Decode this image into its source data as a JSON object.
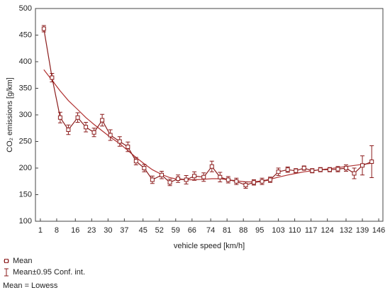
{
  "chart_data": {
    "type": "line",
    "xlabel": "vehicle speed [km/h]",
    "ylabel": "CO₂ emissions [g/km]",
    "xlim": [
      -1.1,
      147.8
    ],
    "xticks": [
      1,
      8,
      16,
      23,
      30,
      37,
      45,
      52,
      59,
      66,
      74,
      81,
      88,
      95,
      103,
      110,
      117,
      124,
      132,
      139,
      146
    ],
    "ylim": [
      100,
      500
    ],
    "yticks": [
      100,
      150,
      200,
      250,
      300,
      350,
      400,
      450,
      500
    ],
    "grid": false,
    "legend": [
      "Mean",
      "Mean±0.95 Conf. int.",
      "Mean = Lowess"
    ],
    "x": [
      2.5,
      6,
      9.5,
      13,
      17,
      20.5,
      24,
      27.5,
      31,
      35,
      38.5,
      42,
      45.5,
      49,
      53,
      56.5,
      60,
      63.5,
      67,
      71,
      74.5,
      78,
      81.5,
      85,
      89,
      92.5,
      96,
      99.5,
      103,
      107,
      110.5,
      114,
      117.5,
      121,
      125,
      128.5,
      132,
      135.5,
      139,
      143
    ],
    "series": [
      {
        "color": "#8b1c1c",
        "values": [
          462,
          370,
          295,
          272,
          295,
          277,
          267,
          290,
          262,
          250,
          240,
          213,
          200,
          178,
          187,
          173,
          180,
          178,
          185,
          183,
          203,
          183,
          178,
          175,
          168,
          173,
          175,
          178,
          193,
          197,
          195,
          200,
          195,
          197,
          197,
          198,
          200,
          190,
          205,
          212
        ],
        "errors": [
          6,
          8,
          10,
          9,
          9,
          9,
          8,
          11,
          10,
          9,
          9,
          7,
          7,
          7,
          7,
          6,
          7,
          8,
          8,
          8,
          10,
          9,
          6,
          6,
          6,
          5,
          6,
          5,
          7,
          5,
          4,
          4,
          4,
          4,
          4,
          5,
          6,
          10,
          18,
          30
        ]
      },
      {
        "color": "#b03030",
        "values": [
          385,
          365,
          345,
          327,
          310,
          295,
          282,
          270,
          258,
          246,
          233,
          220,
          208,
          197,
          188,
          182,
          179,
          178,
          178,
          179,
          180,
          180,
          178,
          176,
          174,
          174,
          176,
          179,
          183,
          187,
          190,
          193,
          195,
          197,
          199,
          201,
          203,
          205,
          207,
          209
        ]
      }
    ]
  }
}
